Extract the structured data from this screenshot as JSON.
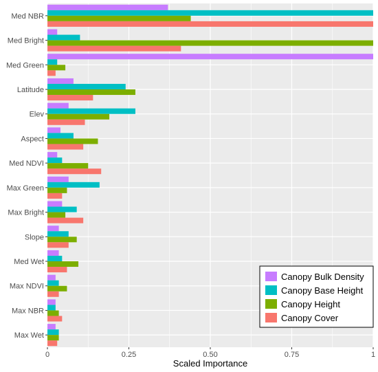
{
  "chart_data": {
    "type": "bar",
    "orientation": "horizontal",
    "xlabel": "Scaled Importance",
    "ylabel": "",
    "xlim": [
      0,
      1
    ],
    "x_ticks": [
      0,
      0.25,
      0.5,
      0.75,
      1
    ],
    "x_tick_labels": [
      "0",
      "0.25",
      "0.50",
      "0.75",
      "1"
    ],
    "grid": true,
    "legend_position": "bottom-right",
    "categories": [
      "Med NBR",
      "Med Bright",
      "Med Green",
      "Latitude",
      "Elev",
      "Aspect",
      "Med NDVI",
      "Max Green",
      "Max Bright",
      "Slope",
      "Med Wet",
      "Max NDVI",
      "Max NBR",
      "Max Wet"
    ],
    "series": [
      {
        "name": "Canopy Bulk Density",
        "color": "#c77cff",
        "values": [
          0.37,
          0.03,
          1.0,
          0.08,
          0.065,
          0.04,
          0.03,
          0.065,
          0.045,
          0.035,
          0.035,
          0.025,
          0.025,
          0.025
        ]
      },
      {
        "name": "Canopy Base Height",
        "color": "#00bfc4",
        "values": [
          1.0,
          0.1,
          0.03,
          0.24,
          0.27,
          0.08,
          0.045,
          0.16,
          0.09,
          0.065,
          0.045,
          0.035,
          0.025,
          0.035
        ]
      },
      {
        "name": "Canopy Height",
        "color": "#7cae00",
        "values": [
          0.44,
          1.0,
          0.055,
          0.27,
          0.19,
          0.155,
          0.125,
          0.06,
          0.055,
          0.09,
          0.095,
          0.06,
          0.035,
          0.035
        ]
      },
      {
        "name": "Canopy Cover",
        "color": "#f8766d",
        "values": [
          1.0,
          0.41,
          0.025,
          0.14,
          0.115,
          0.11,
          0.165,
          0.045,
          0.11,
          0.065,
          0.06,
          0.035,
          0.045,
          0.03
        ]
      }
    ],
    "legend_order": [
      "Canopy Bulk Density",
      "Canopy Base Height",
      "Canopy Height",
      "Canopy Cover"
    ],
    "panel_background": "#ebebeb",
    "grid_color": "#ffffff"
  }
}
